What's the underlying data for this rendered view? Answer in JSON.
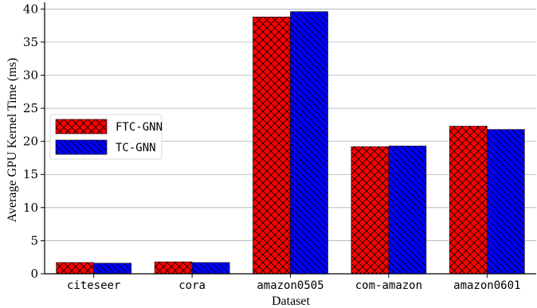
{
  "chart_data": {
    "type": "bar",
    "categories": [
      "citeseer",
      "cora",
      "amazon0505",
      "com-amazon",
      "amazon0601"
    ],
    "series": [
      {
        "name": "FTC-GNN",
        "values": [
          1.7,
          1.8,
          38.8,
          19.2,
          22.3
        ],
        "color": "#ff0000",
        "hatch": "cross"
      },
      {
        "name": "TC-GNN",
        "values": [
          1.6,
          1.7,
          39.6,
          19.3,
          21.8
        ],
        "color": "#0000ff",
        "hatch": "diagonal"
      }
    ],
    "xlabel": "Dataset",
    "ylabel": "Average GPU Kernel Time (ms)",
    "ylim": [
      0,
      41
    ],
    "yticks": [
      0,
      5,
      10,
      15,
      20,
      25,
      30,
      35,
      40
    ],
    "grid": "horizontal",
    "legend": "center-left"
  }
}
